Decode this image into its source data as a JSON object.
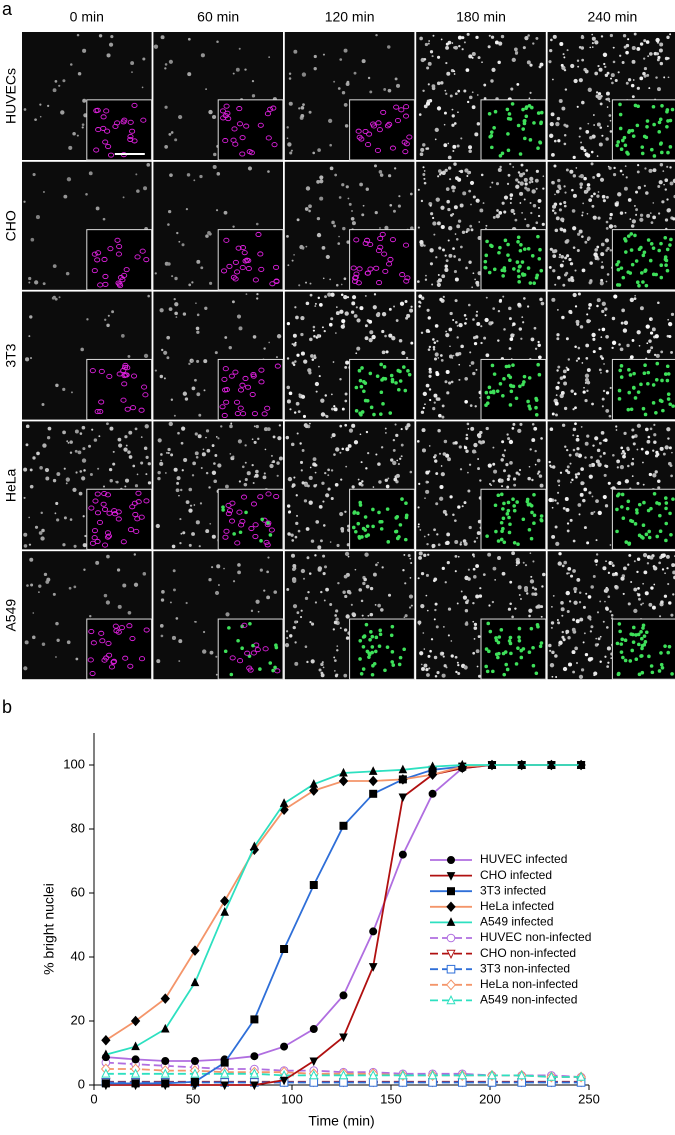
{
  "panel_a": {
    "label": "a",
    "columns": [
      "0 min",
      "60 min",
      "120 min",
      "180 min",
      "240 min"
    ],
    "rows": [
      "HUVECs",
      "CHO",
      "3T3",
      "HeLa",
      "A549"
    ]
  },
  "chart_data": {
    "type": "line",
    "label": "b",
    "x_label": "Time (min)",
    "y_label": "% bright nuclei",
    "xlim": [
      0,
      250
    ],
    "xticks": [
      0,
      50,
      100,
      150,
      200,
      250
    ],
    "ylim": [
      0,
      110
    ],
    "yticks": [
      0,
      20,
      40,
      60,
      80,
      100
    ],
    "grid": false,
    "legend": "right",
    "x": [
      6,
      21,
      36,
      51,
      66,
      81,
      96,
      111,
      126,
      141,
      156,
      171,
      186,
      201,
      216,
      231,
      246
    ],
    "series": [
      {
        "name": "HUVEC infected",
        "color": "#b06ee0",
        "marker": "circle",
        "filled": true,
        "dashed": false,
        "values": [
          8.7,
          8,
          7.5,
          7.5,
          8,
          9,
          12,
          17.5,
          28,
          48,
          72,
          91,
          99,
          100,
          100,
          100,
          100
        ]
      },
      {
        "name": "CHO infected",
        "color": "#b01010",
        "marker": "triangle-down",
        "filled": true,
        "dashed": false,
        "values": [
          0,
          0,
          0,
          0,
          0,
          0,
          1.5,
          7.5,
          15,
          37,
          90,
          97,
          99,
          100,
          100,
          100,
          100
        ]
      },
      {
        "name": "3T3 infected",
        "color": "#2f6fd8",
        "marker": "square",
        "filled": true,
        "dashed": false,
        "values": [
          0.5,
          0.5,
          0.5,
          1,
          7,
          20.5,
          42.5,
          62.5,
          81,
          91,
          95.5,
          98.5,
          99.5,
          100,
          100,
          100,
          100
        ]
      },
      {
        "name": "HeLa infected",
        "color": "#f4956a",
        "marker": "diamond",
        "filled": true,
        "dashed": false,
        "values": [
          14,
          20,
          27,
          42,
          57.5,
          73.5,
          86,
          92,
          95,
          95,
          95.5,
          97,
          99.5,
          100,
          100,
          100,
          100
        ]
      },
      {
        "name": "A549 infected",
        "color": "#2de0c0",
        "marker": "triangle-up",
        "filled": true,
        "dashed": false,
        "values": [
          9.5,
          12,
          17.5,
          32,
          54,
          74.5,
          88,
          94,
          97.5,
          98,
          98.5,
          99.5,
          100,
          100,
          100,
          100,
          100
        ]
      },
      {
        "name": "HUVEC non-infected",
        "color": "#b06ee0",
        "marker": "circle",
        "filled": false,
        "dashed": true,
        "values": [
          7,
          6.5,
          6,
          5.5,
          5,
          5,
          4.5,
          4.5,
          4,
          4,
          3.5,
          3.5,
          3.5,
          3,
          3,
          3,
          2.5
        ]
      },
      {
        "name": "CHO non-infected",
        "color": "#b01010",
        "marker": "triangle-down",
        "filled": false,
        "dashed": true,
        "values": [
          1,
          1,
          1,
          1,
          1,
          1,
          1,
          1,
          1,
          1,
          1,
          1,
          1,
          1,
          1,
          1,
          1
        ]
      },
      {
        "name": "3T3 non-infected",
        "color": "#2f6fd8",
        "marker": "square",
        "filled": false,
        "dashed": true,
        "values": [
          0.8,
          0.8,
          0.8,
          0.8,
          0.8,
          0.8,
          0.8,
          0.8,
          0.8,
          0.8,
          0.8,
          0.8,
          0.8,
          0.8,
          0.8,
          0.8,
          0.8
        ]
      },
      {
        "name": "HeLa non-infected",
        "color": "#f4956a",
        "marker": "diamond",
        "filled": false,
        "dashed": true,
        "values": [
          5,
          5,
          4.5,
          4.5,
          4,
          4,
          4,
          3.5,
          3.5,
          3.5,
          3,
          3,
          3,
          3,
          3,
          2.5,
          2.5
        ]
      },
      {
        "name": "A549 non-infected",
        "color": "#2de0c0",
        "marker": "triangle-up",
        "filled": false,
        "dashed": true,
        "values": [
          3.5,
          3.5,
          3.5,
          3.5,
          3.5,
          3.5,
          3,
          3,
          3,
          3,
          3,
          3,
          3,
          3,
          3,
          2.5,
          2.5
        ]
      }
    ]
  }
}
